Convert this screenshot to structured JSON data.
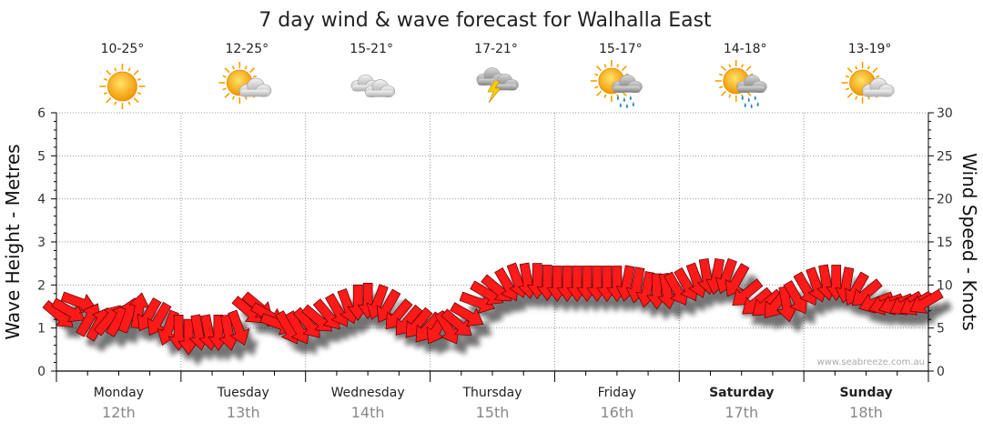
{
  "title": "7 day wind & wave forecast for Walhalla East",
  "credit": "www.seabreeze.com.au",
  "days": [
    {
      "name": "Monday",
      "date": "12th",
      "temp": "10-25°",
      "icon": "sun-icon",
      "bold": false
    },
    {
      "name": "Tuesday",
      "date": "13th",
      "temp": "12-25°",
      "icon": "partly-cloudy-icon",
      "bold": false
    },
    {
      "name": "Wednesday",
      "date": "14th",
      "temp": "15-21°",
      "icon": "cloudy-icon",
      "bold": false
    },
    {
      "name": "Thursday",
      "date": "15th",
      "temp": "17-21°",
      "icon": "thunderstorm-icon",
      "bold": false
    },
    {
      "name": "Friday",
      "date": "16th",
      "temp": "15-17°",
      "icon": "sun-shower-icon",
      "bold": false
    },
    {
      "name": "Saturday",
      "date": "17th",
      "temp": "14-18°",
      "icon": "sun-shower-icon",
      "bold": true
    },
    {
      "name": "Sunday",
      "date": "18th",
      "temp": "13-19°",
      "icon": "partly-cloudy-icon",
      "bold": true
    }
  ],
  "colors": {
    "arrow_fill": "#ff1a1a",
    "arrow_stroke": "#5a0000",
    "grid": "#999999",
    "sun": "#f5a000",
    "cloud": "#c8c8c8",
    "bolt": "#ffcc00",
    "rain": "#1a7fd4"
  },
  "chart_data": {
    "type": "line",
    "title": "7 day wind & wave forecast for Walhalla East",
    "ylabel": "Wave Height - Metres",
    "y2label": "Wind Speed - Knots",
    "ylim": [
      0,
      6
    ],
    "y2lim": [
      0,
      30
    ],
    "yticks": [
      "0",
      "1",
      "2",
      "3",
      "4",
      "5",
      "6"
    ],
    "y2ticks": [
      "0",
      "5",
      "10",
      "15",
      "20",
      "25",
      "30"
    ],
    "grid": true,
    "categories": [
      "Monday 12th",
      "Tuesday 13th",
      "Wednesday 14th",
      "Thursday 15th",
      "Friday 16th",
      "Saturday 17th",
      "Sunday 18th"
    ],
    "series": [
      {
        "marker": "wind-direction-arrow",
        "x_days": [
          0.02,
          0.1,
          0.18,
          0.26,
          0.34,
          0.42,
          0.5,
          0.58,
          0.66,
          0.74,
          0.82,
          0.9,
          0.98,
          1.06,
          1.14,
          1.22,
          1.3,
          1.38,
          1.46,
          1.54,
          1.62,
          1.7,
          1.78,
          1.86,
          1.94,
          2.02,
          2.1,
          2.18,
          2.26,
          2.34,
          2.42,
          2.5,
          2.58,
          2.66,
          2.74,
          2.82,
          2.9,
          2.98,
          3.06,
          3.14,
          3.22,
          3.3,
          3.38,
          3.46,
          3.54,
          3.62,
          3.7,
          3.78,
          3.86,
          3.94,
          4.02,
          4.1,
          4.18,
          4.26,
          4.34,
          4.42,
          4.5,
          4.58,
          4.66,
          4.74,
          4.82,
          4.9,
          4.98,
          5.06,
          5.14,
          5.22,
          5.3,
          5.38,
          5.46,
          5.54,
          5.62,
          5.7,
          5.78,
          5.86,
          5.94,
          6.02,
          6.1,
          6.18,
          6.26,
          6.34,
          6.42,
          6.5,
          6.58,
          6.66,
          6.74,
          6.82,
          6.9,
          6.98
        ],
        "wind_knots": [
          6.5,
          7,
          8,
          6,
          5.5,
          6,
          6,
          6.5,
          7,
          6.5,
          6,
          5,
          4.5,
          4,
          4.5,
          4.5,
          4.5,
          4.5,
          5,
          7,
          7.5,
          6.5,
          5.5,
          5,
          5,
          5.5,
          6,
          6.5,
          7,
          7.5,
          8,
          8.2,
          8,
          7.5,
          6.5,
          5.8,
          5.5,
          5,
          5,
          5,
          5.5,
          6.5,
          8,
          9,
          9.5,
          10,
          10.5,
          10.5,
          10.5,
          10.3,
          10.2,
          10.2,
          10.2,
          10.2,
          10.2,
          10.2,
          10.2,
          10.2,
          10,
          9.5,
          9.3,
          9.3,
          9.5,
          10,
          10.5,
          11,
          11,
          11,
          10.5,
          9,
          8,
          7.8,
          7.8,
          7.8,
          8.5,
          9.5,
          10,
          10.3,
          10.3,
          10,
          9.5,
          9,
          8,
          7.8,
          7.8,
          7.8,
          7.8,
          8
        ],
        "wind_dir_deg": [
          40,
          30,
          20,
          300,
          300,
          310,
          300,
          290,
          280,
          120,
          120,
          110,
          90,
          90,
          80,
          80,
          90,
          80,
          70,
          40,
          40,
          30,
          20,
          60,
          60,
          50,
          40,
          50,
          60,
          70,
          90,
          90,
          110,
          120,
          130,
          130,
          130,
          130,
          120,
          60,
          40,
          30,
          20,
          30,
          40,
          60,
          70,
          80,
          90,
          90,
          90,
          90,
          90,
          90,
          90,
          90,
          90,
          100,
          100,
          100,
          90,
          80,
          60,
          60,
          70,
          80,
          100,
          110,
          120,
          140,
          140,
          140,
          130,
          80,
          60,
          60,
          70,
          80,
          90,
          100,
          120,
          140,
          160,
          160,
          160,
          150,
          150,
          150
        ]
      }
    ]
  }
}
